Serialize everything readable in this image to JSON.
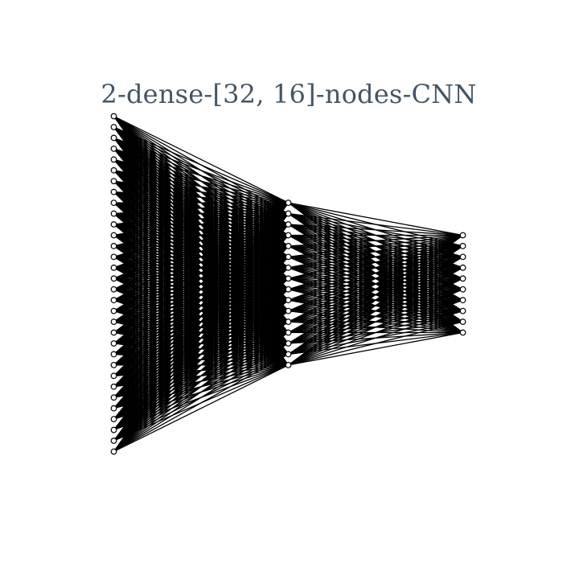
{
  "title": "2-dense-[32, 16]-nodes-CNN",
  "network": {
    "layers": [
      32,
      16,
      10
    ]
  },
  "colors": {
    "title": "#445566",
    "edge": "#000000",
    "node_fill": "#ffffff",
    "node_stroke": "#000000",
    "background": "#ffffff"
  }
}
